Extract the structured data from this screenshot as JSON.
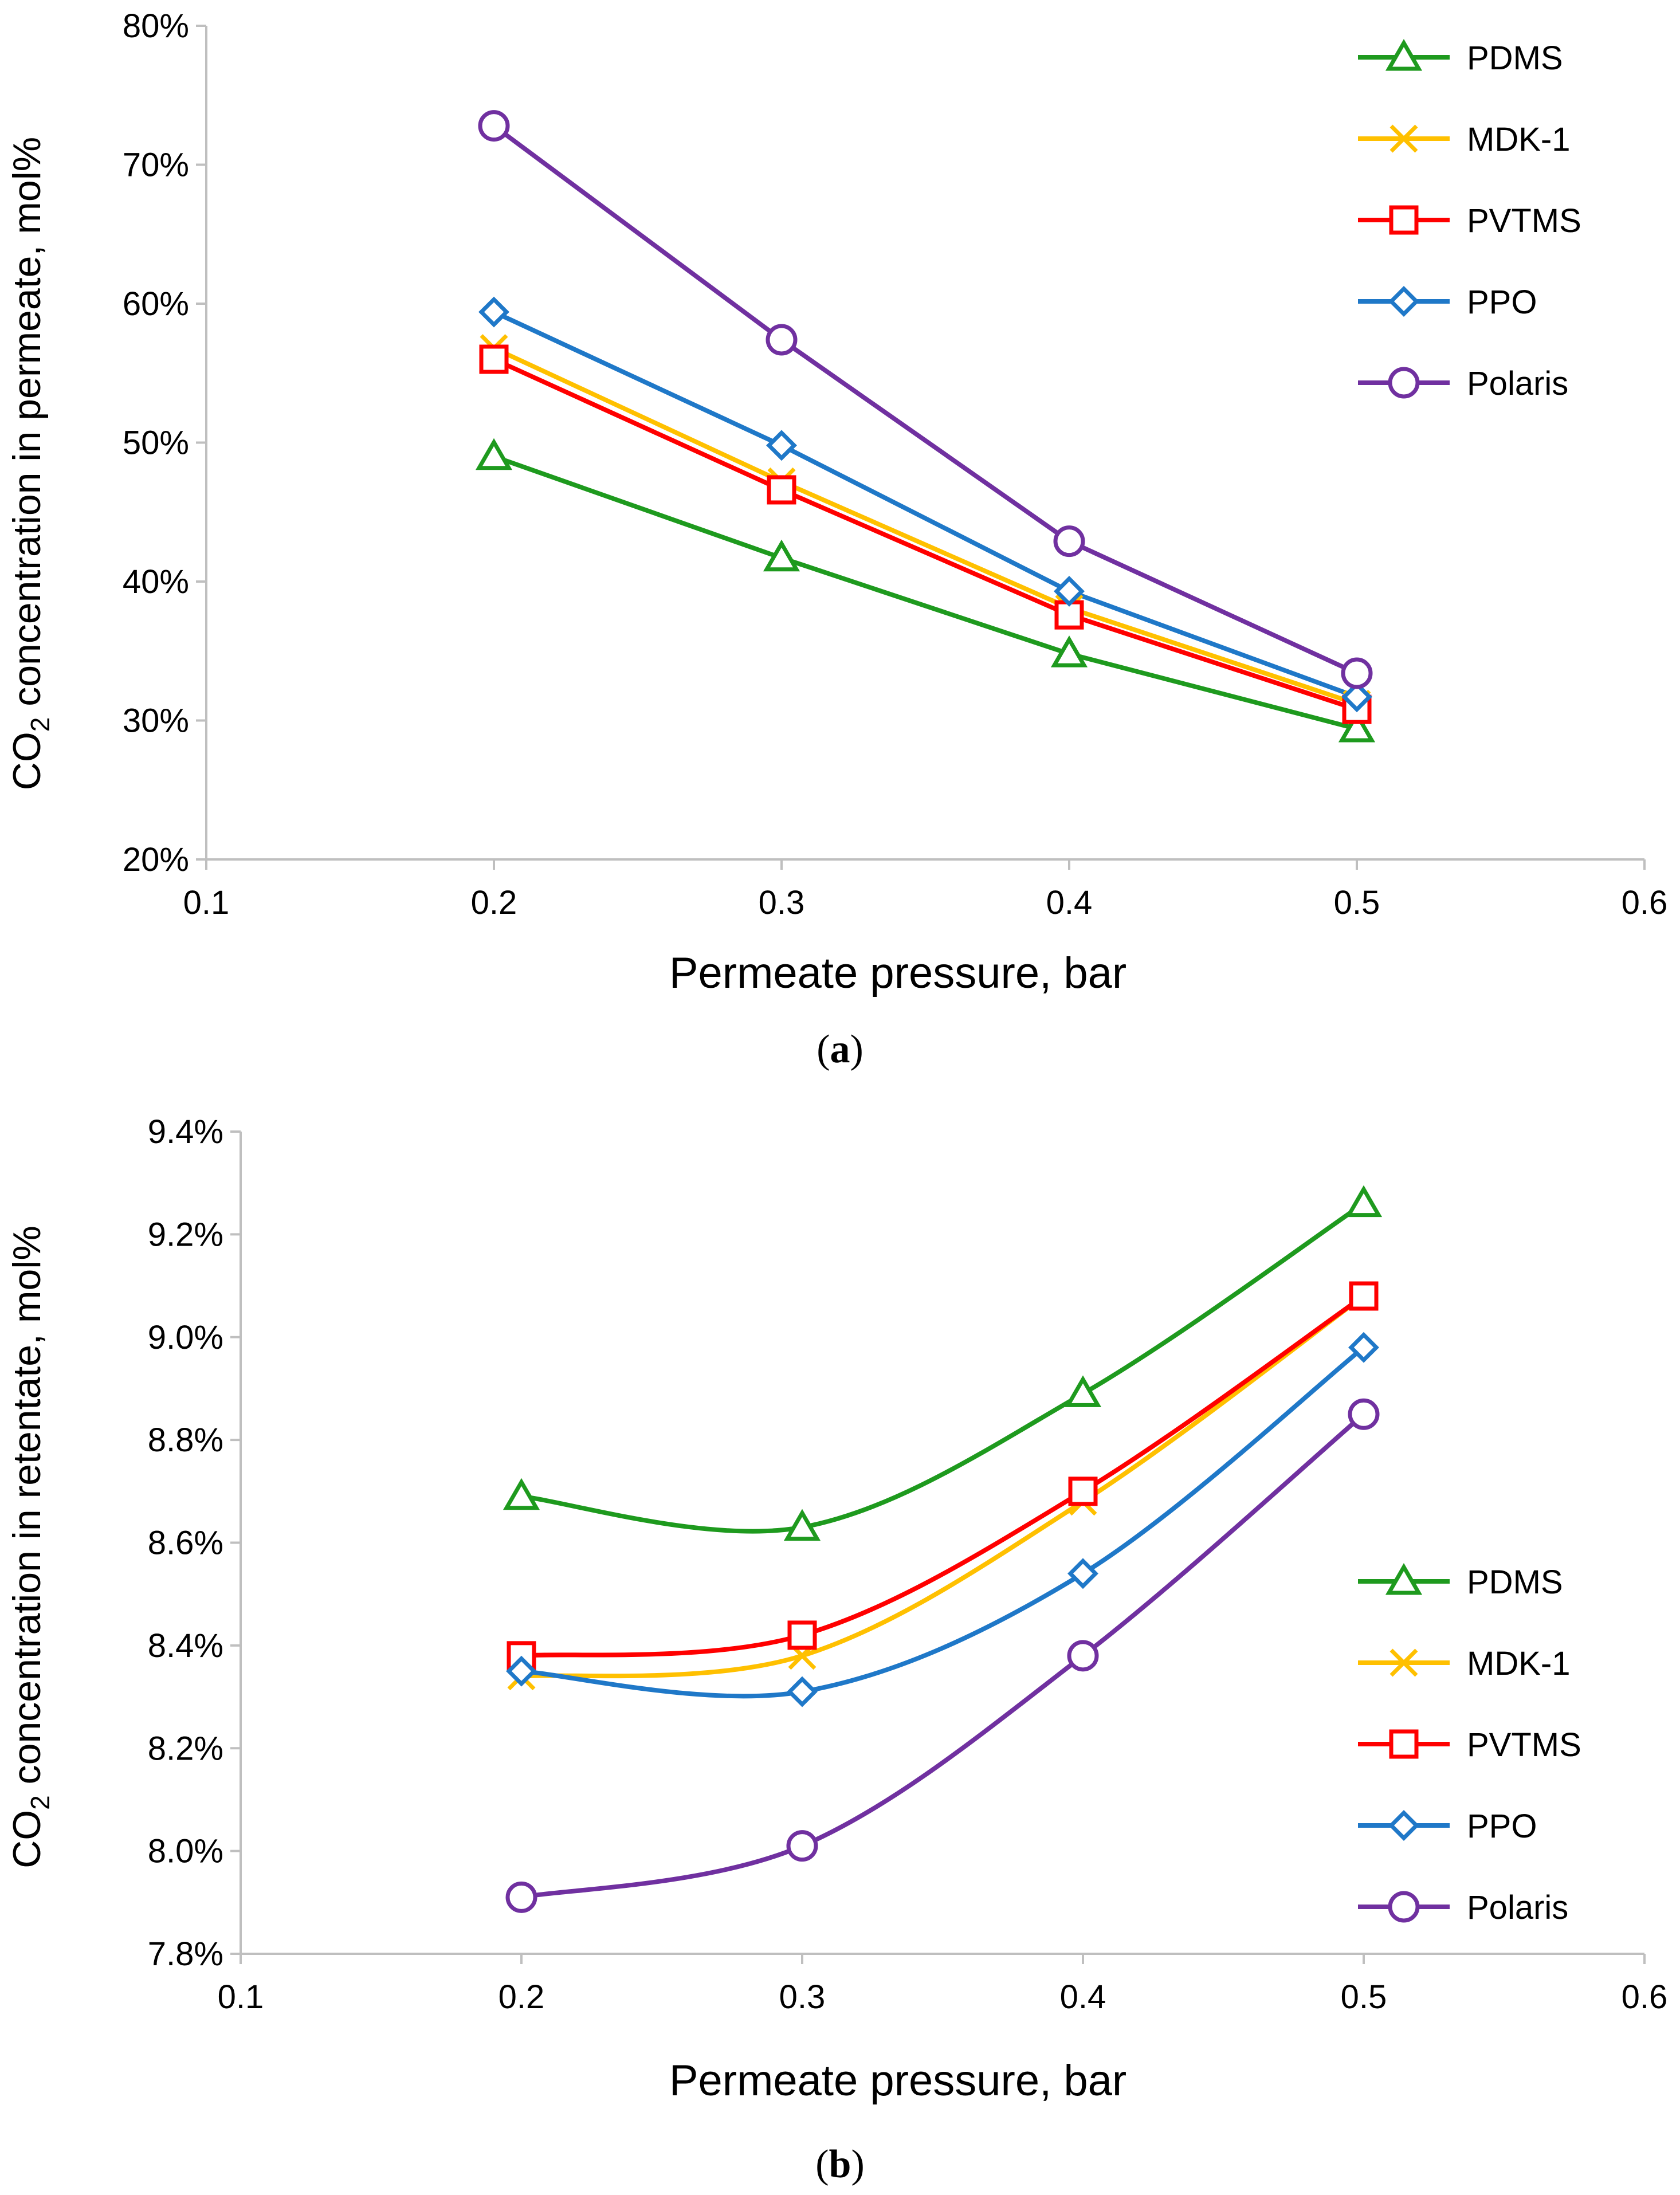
{
  "figure": {
    "charts": [
      {
        "caption_letter": "a",
        "caption_open": "(",
        "caption_close": ")",
        "ytitle_pre": "CO",
        "ytitle_sub": "2",
        "ytitle_post": " concentration in permeate, mol%",
        "xtitle": "Permeate pressure, bar"
      },
      {
        "caption_letter": "b",
        "caption_open": "(",
        "caption_close": ")",
        "ytitle_pre": "CO",
        "ytitle_sub": "2",
        "ytitle_post": " concentration in retentate, mol%",
        "xtitle": "Permeate pressure, bar"
      }
    ]
  },
  "chart_data": [
    {
      "type": "line",
      "title": "",
      "xlabel": "Permeate pressure, bar",
      "ylabel": "CO2 concentration in permeate, mol%",
      "xlim": [
        0.1,
        0.6
      ],
      "ylim": [
        20,
        80
      ],
      "xticks": [
        "0.1",
        "0.2",
        "0.3",
        "0.4",
        "0.5",
        "0.6"
      ],
      "xtick_values": [
        0.1,
        0.2,
        0.3,
        0.4,
        0.5,
        0.6
      ],
      "yticks": [
        "20%",
        "30%",
        "40%",
        "50%",
        "60%",
        "70%",
        "80%"
      ],
      "ytick_values": [
        20,
        30,
        40,
        50,
        60,
        70,
        80
      ],
      "smooth": false,
      "grid": false,
      "legend_position": "top-right",
      "x": [
        0.2,
        0.3,
        0.4,
        0.5
      ],
      "series": [
        {
          "name": "PDMS",
          "color": "#1E9A1E",
          "marker": "triangle",
          "values": [
            49.0,
            41.7,
            34.8,
            29.4
          ]
        },
        {
          "name": "MDK-1",
          "color": "#FFC000",
          "marker": "x",
          "values": [
            56.8,
            47.2,
            38.1,
            31.2
          ]
        },
        {
          "name": "PVTMS",
          "color": "#FF0000",
          "marker": "square",
          "values": [
            56.0,
            46.6,
            37.6,
            30.8
          ]
        },
        {
          "name": "PPO",
          "color": "#1F78C8",
          "marker": "diamond",
          "values": [
            59.4,
            49.8,
            39.3,
            31.7
          ]
        },
        {
          "name": "Polaris",
          "color": "#7030A0",
          "marker": "circle",
          "values": [
            72.8,
            57.4,
            42.9,
            33.4
          ]
        }
      ]
    },
    {
      "type": "line",
      "title": "",
      "xlabel": "Permeate pressure, bar",
      "ylabel": "CO2 concentration in retentate, mol%",
      "xlim": [
        0.1,
        0.6
      ],
      "ylim": [
        7.8,
        9.4
      ],
      "xticks": [
        "0.1",
        "0.2",
        "0.3",
        "0.4",
        "0.5",
        "0.6"
      ],
      "xtick_values": [
        0.1,
        0.2,
        0.3,
        0.4,
        0.5,
        0.6
      ],
      "yticks": [
        "7.8%",
        "8.0%",
        "8.2%",
        "8.4%",
        "8.6%",
        "8.8%",
        "9.0%",
        "9.2%",
        "9.4%"
      ],
      "ytick_values": [
        7.8,
        8.0,
        8.2,
        8.4,
        8.6,
        8.8,
        9.0,
        9.2,
        9.4
      ],
      "smooth": true,
      "grid": false,
      "legend_position": "bottom-right",
      "x": [
        0.2,
        0.3,
        0.4,
        0.5
      ],
      "series": [
        {
          "name": "PDMS",
          "color": "#1E9A1E",
          "marker": "triangle",
          "values": [
            8.69,
            8.63,
            8.89,
            9.26
          ]
        },
        {
          "name": "MDK-1",
          "color": "#FFC000",
          "marker": "x",
          "values": [
            8.34,
            8.38,
            8.68,
            9.08
          ]
        },
        {
          "name": "PVTMS",
          "color": "#FF0000",
          "marker": "square",
          "values": [
            8.38,
            8.42,
            8.7,
            9.08
          ]
        },
        {
          "name": "PPO",
          "color": "#1F78C8",
          "marker": "diamond",
          "values": [
            8.35,
            8.31,
            8.54,
            8.98
          ]
        },
        {
          "name": "Polaris",
          "color": "#7030A0",
          "marker": "circle",
          "values": [
            7.91,
            8.01,
            8.38,
            8.85
          ]
        }
      ]
    }
  ]
}
